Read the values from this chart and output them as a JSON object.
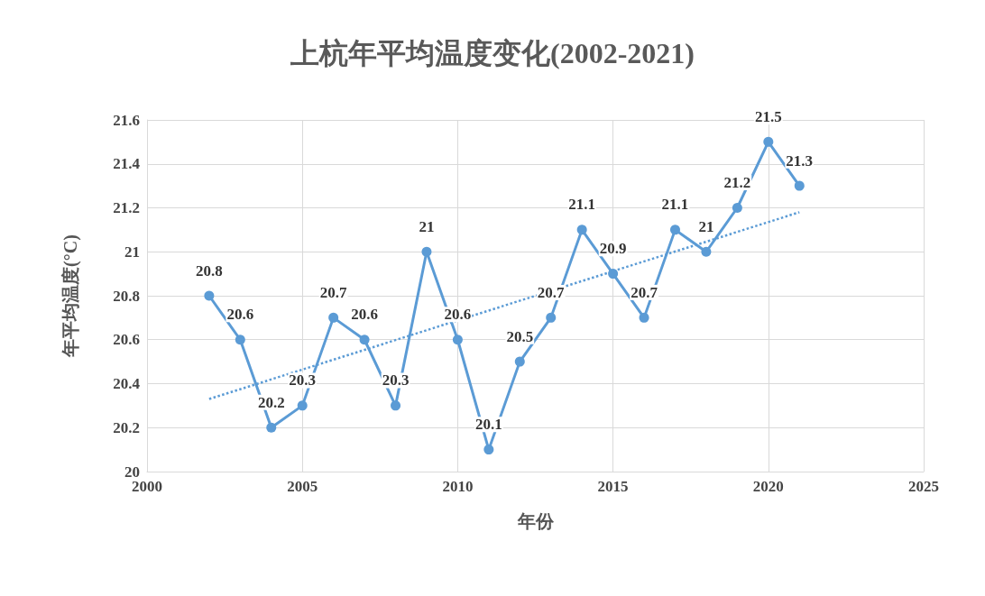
{
  "chart_data": {
    "type": "line",
    "title": "上杭年平均温度变化(2002-2021)",
    "xlabel": "年份",
    "ylabel": "年平均温度(°C)",
    "xlim": [
      2000,
      2025
    ],
    "xticks": [
      2000,
      2005,
      2010,
      2015,
      2020,
      2025
    ],
    "ylim": [
      20,
      21.6
    ],
    "yticks": [
      20,
      20.2,
      20.4,
      20.6,
      20.8,
      21,
      21.2,
      21.4,
      21.6
    ],
    "grid": true,
    "marker": "circle",
    "series": [
      {
        "color": "#5b9bd5",
        "data_labels": true,
        "x": [
          2002,
          2003,
          2004,
          2005,
          2006,
          2007,
          2008,
          2009,
          2010,
          2011,
          2012,
          2013,
          2014,
          2015,
          2016,
          2017,
          2018,
          2019,
          2020,
          2021
        ],
        "values": [
          20.8,
          20.6,
          20.2,
          20.3,
          20.7,
          20.6,
          20.3,
          21,
          20.6,
          20.1,
          20.5,
          20.7,
          21.1,
          20.9,
          20.7,
          21.1,
          21,
          21.2,
          21.5,
          21.3
        ]
      },
      {
        "color": "#5b9bd5",
        "marker": "none",
        "line_style": "dotted",
        "x": [
          2002,
          2021
        ],
        "values": [
          20.33,
          21.18
        ]
      }
    ]
  }
}
